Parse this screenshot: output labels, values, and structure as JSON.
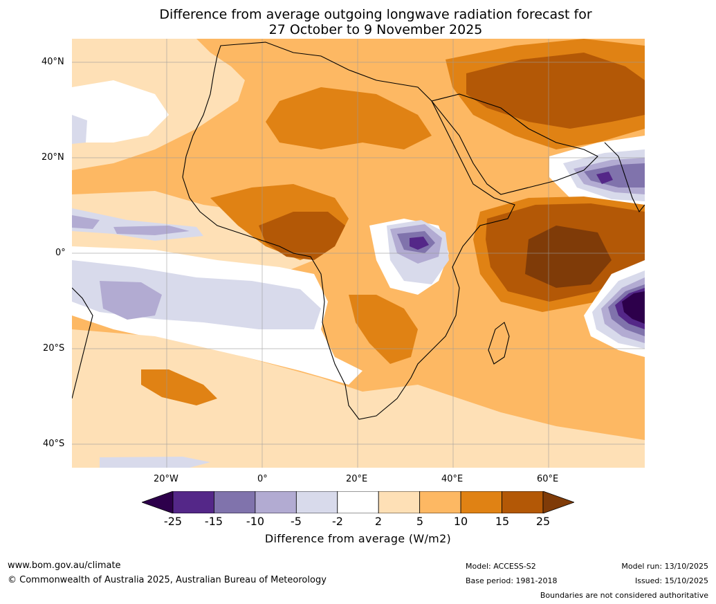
{
  "title": {
    "line1": "Difference from average outgoing longwave radiation forecast for",
    "line2": "27 October to 9 November 2025"
  },
  "map": {
    "lat_labels": [
      "40°N",
      "20°N",
      "0°",
      "20°S",
      "40°S"
    ],
    "lon_labels": [
      "20°W",
      "0°",
      "20°E",
      "40°E",
      "60°E"
    ]
  },
  "colorbar": {
    "ticks": [
      "-25",
      "-15",
      "-10",
      "-5",
      "-2",
      "2",
      "5",
      "10",
      "15",
      "25"
    ],
    "colors": [
      "#2d004b",
      "#542788",
      "#8073ac",
      "#b2abd2",
      "#d8daeb",
      "#ffffff",
      "#fee0b6",
      "#fdb863",
      "#e08214",
      "#b35806",
      "#7f3b08"
    ],
    "label": "Difference from average (W/m2)"
  },
  "footer": {
    "website": "www.bom.gov.au/climate",
    "copyright": "© Commonwealth of Australia 2025, Australian Bureau of Meteorology",
    "model": "Model: ACCESS-S2",
    "base_period": "Base period: 1981-2018",
    "model_run": "Model run: 13/10/2025",
    "issued": "Issued: 15/10/2025",
    "disclaimer": "Boundaries are not considered authoritative"
  }
}
